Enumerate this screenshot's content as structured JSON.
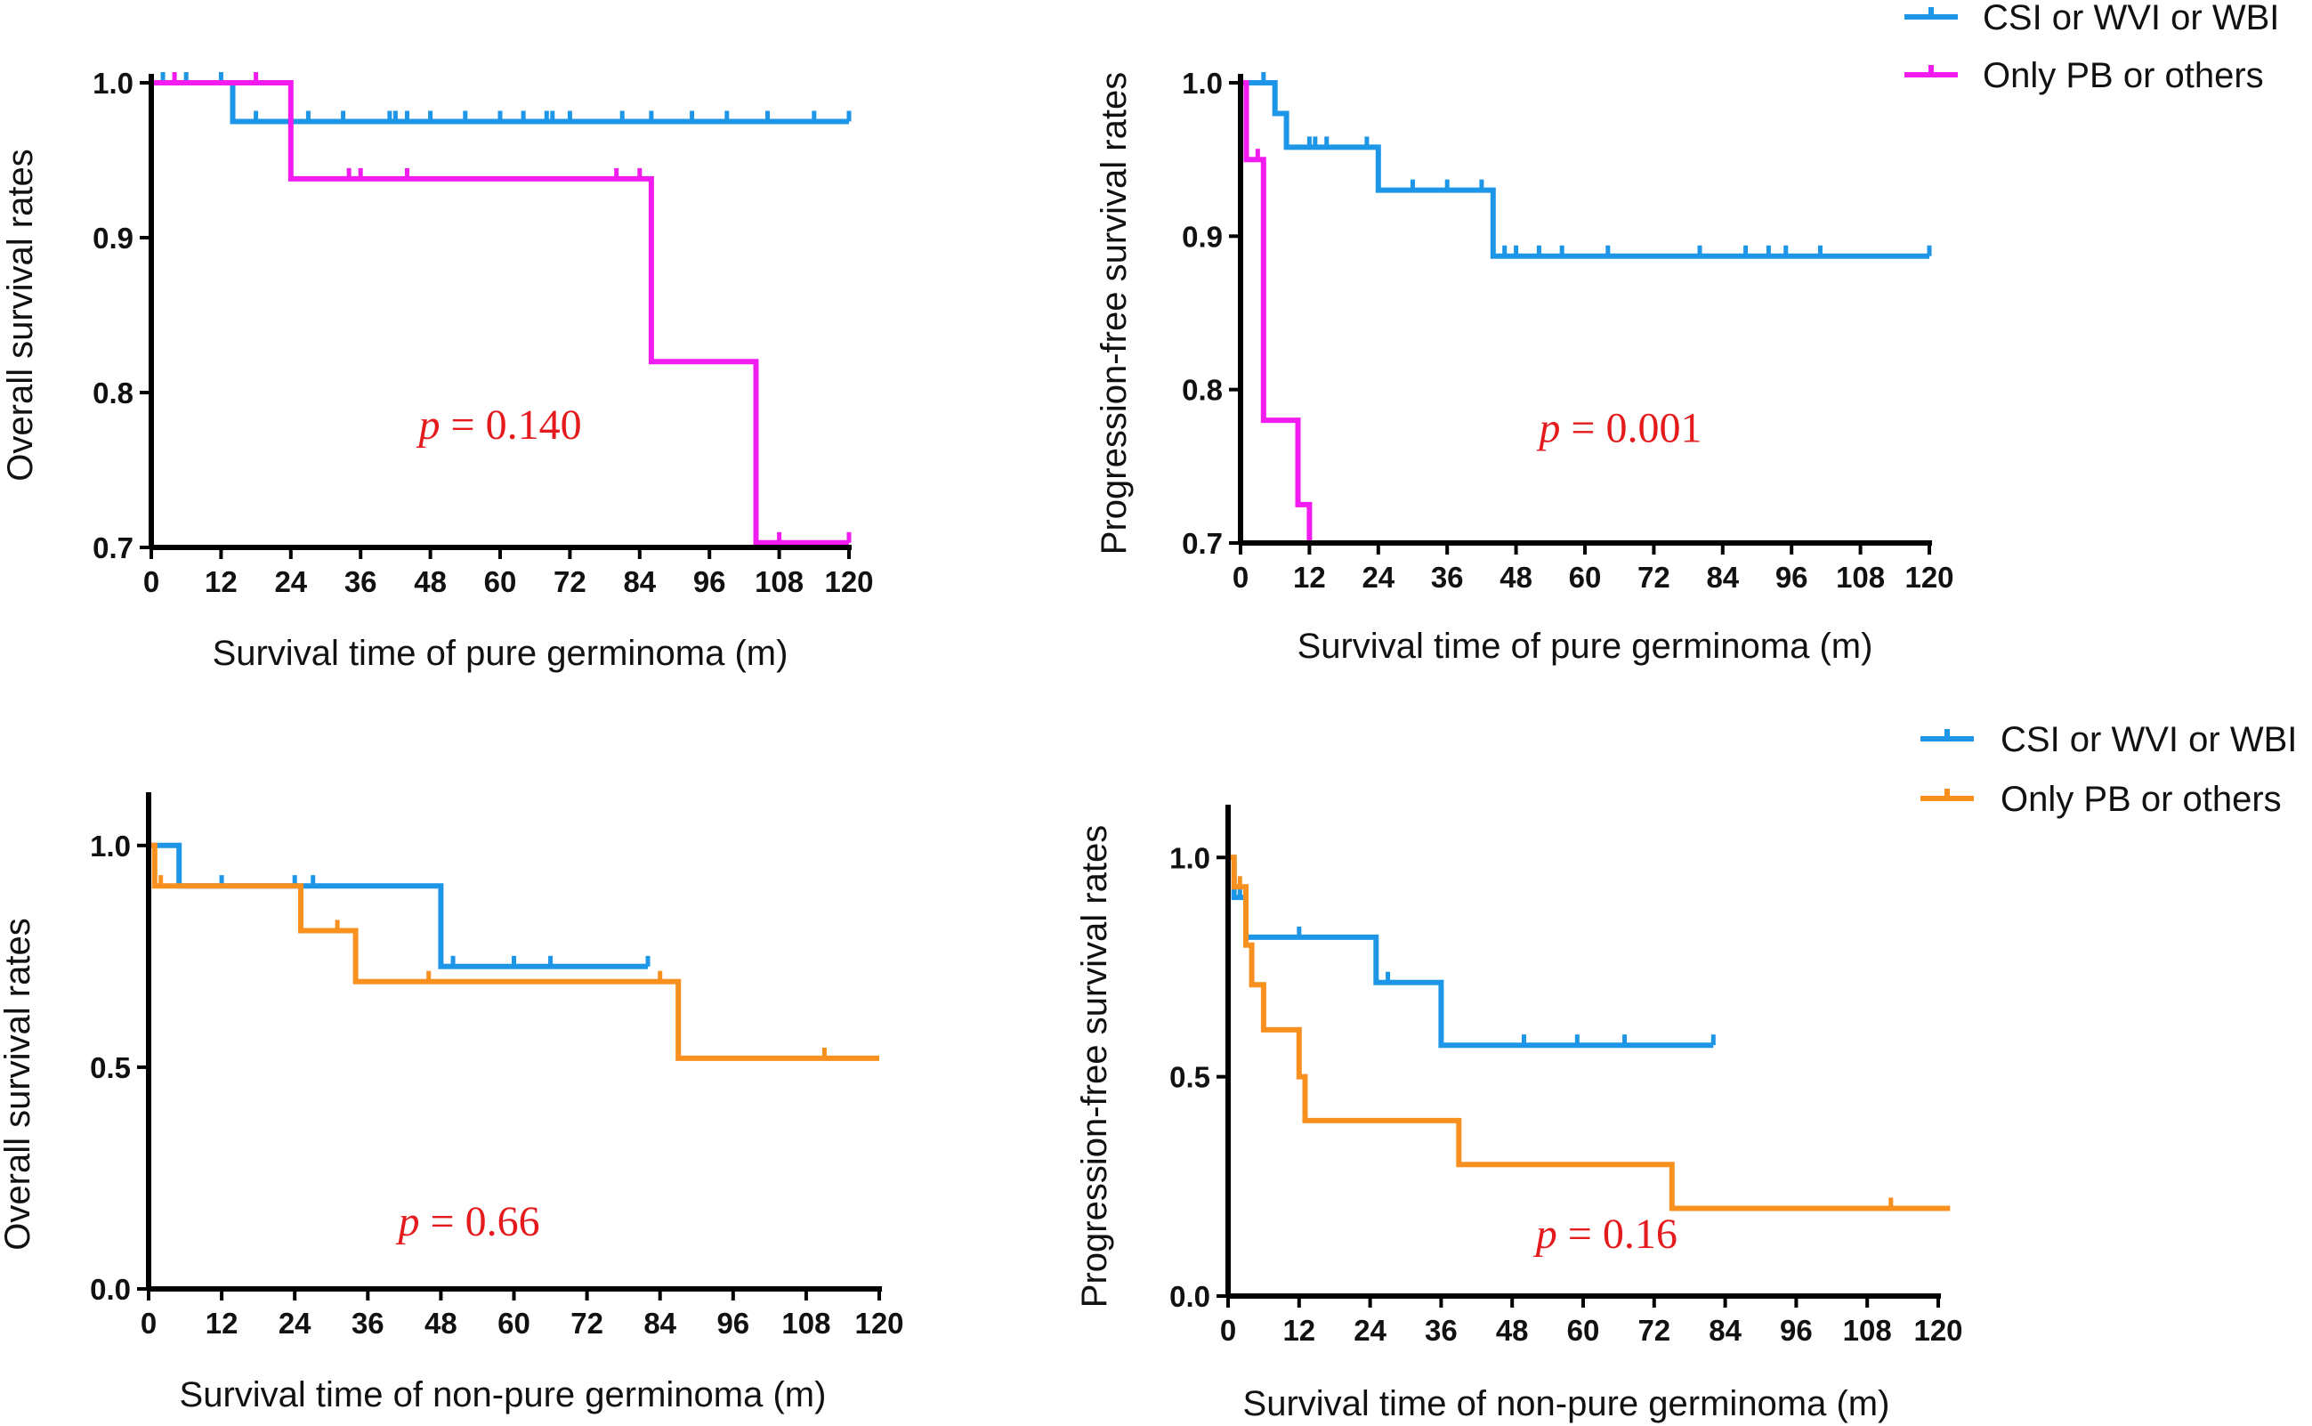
{
  "colors": {
    "blue": "#1e96e8",
    "magenta": "#f21cf0",
    "orange": "#f7901e",
    "pvalue": "#e41a1c",
    "axis": "#000000"
  },
  "chart_data": [
    {
      "id": "os-pure",
      "type": "line",
      "step": true,
      "xlabel": "Survival time of pure germinoma (m)",
      "ylabel": "Overall survival rates",
      "xlim": [
        0,
        120
      ],
      "ylim": [
        0.7,
        1.0
      ],
      "xticks": [
        0,
        12,
        24,
        36,
        48,
        60,
        72,
        84,
        96,
        108,
        120
      ],
      "yticks": [
        0.7,
        0.8,
        0.9,
        1.0
      ],
      "ytick_labels": [
        "0.7",
        "0.8",
        "0.9",
        "1.0"
      ],
      "pvalue_symbol": "p",
      "pvalue_text": " = 0.140",
      "pvalue_pos": [
        46,
        0.77
      ],
      "legend": null,
      "series": [
        {
          "name": "CSI or WVI or WBI",
          "color": "blue",
          "points": [
            [
              0,
              1.0
            ],
            [
              14,
              1.0
            ],
            [
              14,
              0.975
            ],
            [
              120,
              0.975
            ]
          ],
          "censors": [
            [
              2,
              1.0
            ],
            [
              6,
              1.0
            ],
            [
              12,
              1.0
            ],
            [
              18,
              0.975
            ],
            [
              27,
              0.975
            ],
            [
              33,
              0.975
            ],
            [
              41,
              0.975
            ],
            [
              42,
              0.975
            ],
            [
              44,
              0.975
            ],
            [
              48,
              0.975
            ],
            [
              54,
              0.975
            ],
            [
              60,
              0.975
            ],
            [
              64,
              0.975
            ],
            [
              68,
              0.975
            ],
            [
              69,
              0.975
            ],
            [
              72,
              0.975
            ],
            [
              81,
              0.975
            ],
            [
              86,
              0.975
            ],
            [
              93,
              0.975
            ],
            [
              99,
              0.975
            ],
            [
              106,
              0.975
            ],
            [
              114,
              0.975
            ],
            [
              120,
              0.975
            ]
          ]
        },
        {
          "name": "Only PB or others",
          "color": "magenta",
          "points": [
            [
              0,
              1.0
            ],
            [
              24,
              1.0
            ],
            [
              24,
              0.938
            ],
            [
              86,
              0.938
            ],
            [
              86,
              0.82
            ],
            [
              104,
              0.82
            ],
            [
              104,
              0.703
            ],
            [
              120,
              0.703
            ]
          ],
          "censors": [
            [
              4,
              1.0
            ],
            [
              18,
              1.0
            ],
            [
              34,
              0.938
            ],
            [
              36,
              0.938
            ],
            [
              44,
              0.938
            ],
            [
              80,
              0.938
            ],
            [
              84,
              0.938
            ],
            [
              108,
              0.703
            ],
            [
              120,
              0.703
            ]
          ]
        }
      ]
    },
    {
      "id": "pfs-pure",
      "type": "line",
      "step": true,
      "xlabel": "Survival time of pure germinoma (m)",
      "ylabel": "Progression-free survival rates",
      "xlim": [
        0,
        120
      ],
      "ylim": [
        0.7,
        1.0
      ],
      "xticks": [
        0,
        12,
        24,
        36,
        48,
        60,
        72,
        84,
        96,
        108,
        120
      ],
      "yticks": [
        0.7,
        0.8,
        0.9,
        1.0
      ],
      "ytick_labels": [
        "0.7",
        "0.8",
        "0.9",
        "1.0"
      ],
      "pvalue_symbol": "p",
      "pvalue_text": " = 0.001",
      "pvalue_pos": [
        52,
        0.766
      ],
      "legend": {
        "placement": "top-right",
        "entries": [
          "CSI or WVI or WBI",
          "Only PB or others"
        ],
        "colors": [
          "blue",
          "magenta"
        ]
      },
      "series": [
        {
          "name": "CSI or WVI or WBI",
          "color": "blue",
          "points": [
            [
              0,
              1.0
            ],
            [
              6,
              1.0
            ],
            [
              6,
              0.98
            ],
            [
              8,
              0.98
            ],
            [
              8,
              0.958
            ],
            [
              24,
              0.958
            ],
            [
              24,
              0.93
            ],
            [
              44,
              0.93
            ],
            [
              44,
              0.887
            ],
            [
              120,
              0.887
            ]
          ],
          "censors": [
            [
              4,
              1.0
            ],
            [
              12,
              0.958
            ],
            [
              13,
              0.958
            ],
            [
              15,
              0.958
            ],
            [
              22,
              0.958
            ],
            [
              30,
              0.93
            ],
            [
              36,
              0.93
            ],
            [
              42,
              0.93
            ],
            [
              46,
              0.887
            ],
            [
              48,
              0.887
            ],
            [
              52,
              0.887
            ],
            [
              56,
              0.887
            ],
            [
              64,
              0.887
            ],
            [
              80,
              0.887
            ],
            [
              88,
              0.887
            ],
            [
              92,
              0.887
            ],
            [
              95,
              0.887
            ],
            [
              101,
              0.887
            ],
            [
              120,
              0.887
            ]
          ]
        },
        {
          "name": "Only PB or others",
          "color": "magenta",
          "points": [
            [
              0,
              1.0
            ],
            [
              1,
              1.0
            ],
            [
              1,
              0.95
            ],
            [
              4,
              0.95
            ],
            [
              4,
              0.78
            ],
            [
              10,
              0.78
            ],
            [
              10,
              0.725
            ],
            [
              12,
              0.725
            ],
            [
              12,
              0.7
            ],
            [
              120,
              0.7
            ]
          ],
          "censors": [
            [
              3,
              0.95
            ]
          ]
        }
      ]
    },
    {
      "id": "os-nonpure",
      "type": "line",
      "step": true,
      "xlabel": "Survival time of non-pure germinoma (m)",
      "ylabel": "Overall survival rates",
      "xlim": [
        0,
        120
      ],
      "ylim": [
        0.0,
        1.1
      ],
      "xticks": [
        0,
        12,
        24,
        36,
        48,
        60,
        72,
        84,
        96,
        108,
        120
      ],
      "yticks": [
        0.0,
        0.5,
        1.0
      ],
      "ytick_labels": [
        "0.0",
        "0.5",
        "1.0"
      ],
      "pvalue_symbol": "p",
      "pvalue_text": " = 0.66",
      "pvalue_pos": [
        41,
        0.12
      ],
      "legend": null,
      "series": [
        {
          "name": "CSI or WVI or WBI",
          "color": "blue",
          "points": [
            [
              0,
              1.0
            ],
            [
              5,
              1.0
            ],
            [
              5,
              0.909
            ],
            [
              48,
              0.909
            ],
            [
              48,
              0.727
            ],
            [
              82,
              0.727
            ]
          ],
          "censors": [
            [
              12,
              0.909
            ],
            [
              24,
              0.909
            ],
            [
              27,
              0.909
            ],
            [
              50,
              0.727
            ],
            [
              60,
              0.727
            ],
            [
              66,
              0.727
            ],
            [
              82,
              0.727
            ]
          ]
        },
        {
          "name": "Only PB or others",
          "color": "orange",
          "points": [
            [
              0,
              1.0
            ],
            [
              1,
              1.0
            ],
            [
              1,
              0.909
            ],
            [
              25,
              0.909
            ],
            [
              25,
              0.808
            ],
            [
              34,
              0.808
            ],
            [
              34,
              0.693
            ],
            [
              87,
              0.693
            ],
            [
              87,
              0.52
            ],
            [
              120,
              0.52
            ]
          ],
          "censors": [
            [
              2,
              0.909
            ],
            [
              31,
              0.808
            ],
            [
              46,
              0.693
            ],
            [
              84,
              0.693
            ],
            [
              111,
              0.52
            ]
          ]
        }
      ]
    },
    {
      "id": "pfs-nonpure",
      "type": "line",
      "step": true,
      "xlabel": "Survival time of non-pure germinoma (m)",
      "ylabel": "Progression-free survival rates",
      "xlim": [
        0,
        120
      ],
      "ylim": [
        0.0,
        1.1
      ],
      "xticks": [
        0,
        12,
        24,
        36,
        48,
        60,
        72,
        84,
        96,
        108,
        120
      ],
      "yticks": [
        0.0,
        0.5,
        1.0
      ],
      "ytick_labels": [
        "0.0",
        "0.5",
        "1.0"
      ],
      "pvalue_symbol": "p",
      "pvalue_text": " = 0.16",
      "pvalue_pos": [
        52,
        0.11
      ],
      "legend": {
        "placement": "top-right",
        "entries": [
          "CSI or WVI or WBI",
          "Only PB or others"
        ],
        "colors": [
          "blue",
          "orange"
        ]
      },
      "series": [
        {
          "name": "CSI or WVI or WBI",
          "color": "blue",
          "points": [
            [
              0,
              1.0
            ],
            [
              1,
              1.0
            ],
            [
              1,
              0.909
            ],
            [
              3,
              0.909
            ],
            [
              3,
              0.818
            ],
            [
              25,
              0.818
            ],
            [
              25,
              0.715
            ],
            [
              36,
              0.715
            ],
            [
              36,
              0.572
            ],
            [
              82,
              0.572
            ]
          ],
          "censors": [
            [
              2,
              0.909
            ],
            [
              12,
              0.818
            ],
            [
              27,
              0.715
            ],
            [
              50,
              0.572
            ],
            [
              59,
              0.572
            ],
            [
              67,
              0.572
            ],
            [
              82,
              0.572
            ]
          ]
        },
        {
          "name": "Only PB or others",
          "color": "orange",
          "points": [
            [
              0,
              1.0
            ],
            [
              1,
              1.0
            ],
            [
              1,
              0.933
            ],
            [
              3,
              0.933
            ],
            [
              3,
              0.8
            ],
            [
              4,
              0.8
            ],
            [
              4,
              0.71
            ],
            [
              6,
              0.71
            ],
            [
              6,
              0.607
            ],
            [
              12,
              0.607
            ],
            [
              12,
              0.5
            ],
            [
              13,
              0.5
            ],
            [
              13,
              0.4
            ],
            [
              39,
              0.4
            ],
            [
              39,
              0.3
            ],
            [
              75,
              0.3
            ],
            [
              75,
              0.2
            ],
            [
              122,
              0.2
            ]
          ],
          "censors": [
            [
              2,
              0.933
            ],
            [
              112,
              0.2
            ]
          ]
        }
      ]
    }
  ]
}
